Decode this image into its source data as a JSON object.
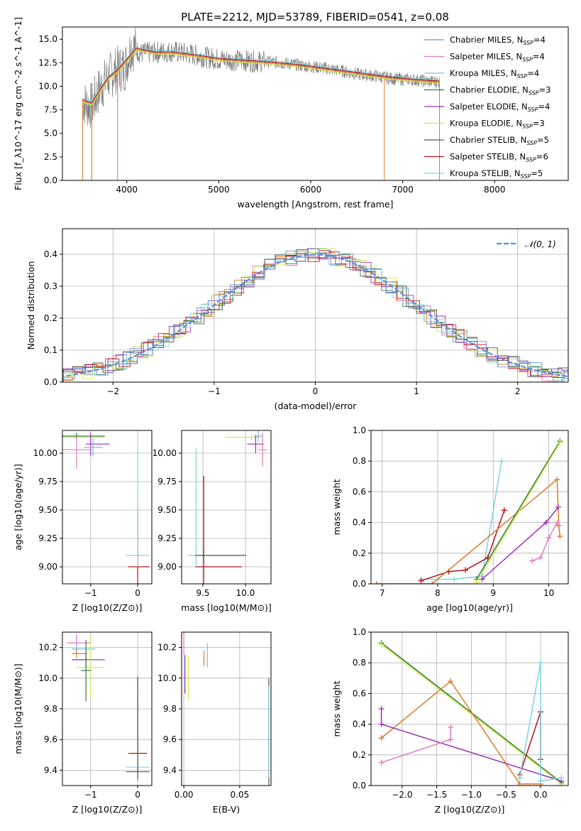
{
  "figure": {
    "title": "PLATE=2212, MJD=53789, FIBERID=0541, z=0.08"
  },
  "colors": {
    "Chabrier MILES": "#6b8fd6",
    "Salpeter MILES": "#e07cc0",
    "Kroupa MILES": "#7fb8e6",
    "Chabrier ELODIE": "#2f7f3f",
    "Salpeter ELODIE": "#9a2fb5",
    "Kroupa ELODIE": "#d6e84a",
    "Chabrier STELIB": "#555555",
    "Salpeter STELIB": "#b5121b",
    "Kroupa STELIB": "#7fd1e0",
    "orange_model": "#d97a2b",
    "green_model": "#a9d94a"
  },
  "chart_data": [
    {
      "id": "spectrum",
      "type": "line",
      "xlabel": "wavelength [Angstrom, rest frame]",
      "ylabel": "Flux [f_λ10^-17 erg cm^-2 s^-1 A^-1]",
      "xlim": [
        3300,
        8800
      ],
      "ylim": [
        0,
        16.3
      ],
      "xticks": [
        4000,
        5000,
        6000,
        7000,
        8000
      ],
      "yticks": [
        "0.0",
        "2.5",
        "5.0",
        "7.5",
        "10.0",
        "12.5",
        "15.0"
      ],
      "grid": false,
      "legend_position": "top-right",
      "legend": [
        {
          "name": "Chabrier MILES",
          "nssp": "4"
        },
        {
          "name": "Salpeter MILES",
          "nssp": "4"
        },
        {
          "name": "Kroupa MILES",
          "nssp": "4"
        },
        {
          "name": "Chabrier ELODIE",
          "nssp": "3"
        },
        {
          "name": "Salpeter ELODIE",
          "nssp": "4"
        },
        {
          "name": "Kroupa ELODIE",
          "nssp": "3"
        },
        {
          "name": "Chabrier STELIB",
          "nssp": "5"
        },
        {
          "name": "Salpeter STELIB",
          "nssp": "6"
        },
        {
          "name": "Kroupa STELIB",
          "nssp": "5"
        }
      ],
      "data_x": [
        3520,
        3560,
        3620,
        3700,
        3800,
        3900,
        3980,
        4050,
        4150,
        4300,
        4500,
        4700,
        4900,
        5100,
        5300,
        5500,
        5700,
        5900,
        6100,
        6300,
        6500,
        6700,
        6900,
        7100,
        7300,
        7400
      ],
      "data_y": [
        8.5,
        8.0,
        7.9,
        9.6,
        11.0,
        11.8,
        12.0,
        14.3,
        13.5,
        13.6,
        13.7,
        13.4,
        13.0,
        12.8,
        12.7,
        12.6,
        12.5,
        12.2,
        12.0,
        11.7,
        11.3,
        11.1,
        10.8,
        10.7,
        10.5,
        10.5
      ],
      "model_x": [
        3520,
        3620,
        3700,
        3800,
        3900,
        4000,
        4100,
        4300,
        4500,
        4800,
        5000,
        5300,
        5600,
        5900,
        6200,
        6500,
        6800,
        7100,
        7400
      ],
      "model_y": [
        8.5,
        8.2,
        9.5,
        10.9,
        11.7,
        12.8,
        14.0,
        13.6,
        13.6,
        13.2,
        12.9,
        12.7,
        12.5,
        12.2,
        11.8,
        11.4,
        11.0,
        10.7,
        10.5
      ]
    },
    {
      "id": "residuals",
      "type": "histogram",
      "xlabel": "(data-model)/error",
      "ylabel": "Normed distribution",
      "xlim": [
        -2.5,
        2.5
      ],
      "ylim": [
        0,
        0.48
      ],
      "xticks": [
        "−2",
        "−1",
        "0",
        "1",
        "2"
      ],
      "yticks": [
        "0.0",
        "0.1",
        "0.2",
        "0.3",
        "0.4"
      ],
      "grid": true,
      "legend_position": "top-right",
      "legend": [
        {
          "name": "𝒩(0, 1)"
        }
      ],
      "gaussian": {
        "mean": 0,
        "sigma": 1
      }
    },
    {
      "id": "age_vs_Z",
      "type": "errorbar",
      "xlabel": "Z [log10(Z/Z⊙)]",
      "ylabel": "age  [log10(age/yr)]",
      "xlim": [
        -1.6,
        0.3
      ],
      "ylim": [
        8.85,
        10.2
      ],
      "xticks": [
        "−1",
        "0"
      ],
      "yticks": [
        "9.00",
        "9.25",
        "9.50",
        "9.75",
        "10.00"
      ],
      "grid": true,
      "points": [
        {
          "series": "Kroupa ELODIE",
          "x": -1.3,
          "y": 10.14,
          "xerr": [
            0.3,
            0.6
          ],
          "yerr": [
            0.03,
            0.03
          ]
        },
        {
          "series": "Chabrier ELODIE",
          "x": -1.3,
          "y": 10.15,
          "xerr": [
            0.3,
            0.6
          ],
          "yerr": [
            0.03,
            0.03
          ]
        },
        {
          "series": "Salpeter MILES",
          "x": -1.3,
          "y": 10.03,
          "xerr": [
            0.3,
            0.3
          ],
          "yerr": [
            0.17,
            0.12
          ]
        },
        {
          "series": "Salpeter ELODIE",
          "x": -1.0,
          "y": 10.08,
          "xerr": [
            0.1,
            0.4
          ],
          "yerr": [
            0.1,
            0.1
          ]
        },
        {
          "series": "Kroupa MILES",
          "x": -0.95,
          "y": 10.05,
          "xerr": [
            0.2,
            0.2
          ],
          "yerr": [
            0.08,
            0.08
          ]
        },
        {
          "series": "Salpeter STELIB",
          "x": 0.0,
          "y": 9.0,
          "xerr": [
            0.2,
            0.25
          ],
          "yerr": [
            0.15,
            0.5
          ]
        },
        {
          "series": "Kroupa STELIB",
          "x": 0.0,
          "y": 9.1,
          "xerr": [
            0.25,
            0.25
          ],
          "yerr": [
            0.1,
            0.95
          ]
        }
      ]
    },
    {
      "id": "age_vs_mass",
      "type": "errorbar",
      "xlabel": "mass [log10(M/M⊙)]",
      "ylabel": "",
      "xlim": [
        9.25,
        10.3
      ],
      "ylim": [
        8.85,
        10.2
      ],
      "xticks": [
        "9.5",
        "10.0"
      ],
      "yticks": [
        "9.00",
        "9.25",
        "9.50",
        "9.75",
        "10.00"
      ],
      "grid": true,
      "points": [
        {
          "series": "Kroupa ELODIE",
          "x": 10.07,
          "y": 10.14,
          "xerr": [
            0.3,
            0.1
          ],
          "yerr": [
            0.03,
            0.03
          ]
        },
        {
          "series": "Salpeter ELODIE",
          "x": 10.12,
          "y": 10.08,
          "xerr": [
            0.1,
            0.1
          ],
          "yerr": [
            0.08,
            0.08
          ]
        },
        {
          "series": "Salpeter MILES",
          "x": 10.2,
          "y": 10.03,
          "xerr": [
            0.05,
            0.05
          ],
          "yerr": [
            0.15,
            0.15
          ]
        },
        {
          "series": "Kroupa MILES",
          "x": 10.15,
          "y": 10.15,
          "xerr": [
            0.05,
            0.05
          ],
          "yerr": [
            0.05,
            0.05
          ]
        },
        {
          "series": "Salpeter STELIB",
          "x": 9.51,
          "y": 9.0,
          "xerr": [
            0.1,
            0.45
          ],
          "yerr": [
            0.15,
            0.8
          ]
        },
        {
          "series": "Kroupa STELIB",
          "x": 9.42,
          "y": 9.1,
          "xerr": [
            0.1,
            0.55
          ],
          "yerr": [
            0.1,
            0.95
          ]
        },
        {
          "series": "Chabrier STELIB",
          "x": 9.51,
          "y": 9.1,
          "xerr": [
            0.1,
            0.5
          ],
          "yerr": [
            0.05,
            0.05
          ]
        }
      ]
    },
    {
      "id": "weight_vs_age",
      "type": "line",
      "xlabel": "age  [log10(age/yr)]",
      "ylabel": "mass weight",
      "xlim": [
        6.8,
        10.35
      ],
      "ylim": [
        0,
        1.0
      ],
      "xticks": [
        "7",
        "8",
        "9",
        "10"
      ],
      "yticks": [
        "0.0",
        "0.2",
        "0.4",
        "0.6",
        "0.8",
        "1.0"
      ],
      "grid": true,
      "series": [
        {
          "series": "Kroupa STELIB",
          "x": [
            7.7,
            8.3,
            8.8,
            9.15
          ],
          "y": [
            0.03,
            0.03,
            0.05,
            0.8
          ]
        },
        {
          "series": "Salpeter STELIB",
          "x": [
            7.7,
            8.2,
            8.5,
            8.9,
            9.2
          ],
          "y": [
            0.02,
            0.08,
            0.09,
            0.17,
            0.48
          ]
        },
        {
          "series": "orange_model",
          "x": [
            6.9,
            7.9,
            10.15,
            10.18,
            10.2
          ],
          "y": [
            0.0,
            0.0,
            0.68,
            0.38,
            0.31
          ]
        },
        {
          "series": "Chabrier ELODIE",
          "x": [
            8.7,
            10.2
          ],
          "y": [
            0.03,
            0.93
          ]
        },
        {
          "series": "Kroupa ELODIE",
          "x": [
            8.7,
            10.2
          ],
          "y": [
            0.01,
            0.92
          ]
        },
        {
          "series": "Salpeter ELODIE",
          "x": [
            8.8,
            9.95,
            10.17
          ],
          "y": [
            0.03,
            0.4,
            0.5
          ]
        },
        {
          "series": "Salpeter MILES",
          "x": [
            9.7,
            9.85,
            10.0,
            10.15
          ],
          "y": [
            0.15,
            0.17,
            0.3,
            0.4
          ]
        }
      ]
    },
    {
      "id": "mass_vs_Z",
      "type": "errorbar",
      "xlabel": "Z [log10(Z/Z⊙)]",
      "ylabel": "mass [log10(M/M⊙)]",
      "xlim": [
        -1.6,
        0.3
      ],
      "ylim": [
        9.3,
        10.3
      ],
      "xticks": [
        "−1",
        "0"
      ],
      "yticks": [
        "9.4",
        "9.6",
        "9.8",
        "10.0",
        "10.2"
      ],
      "grid": true,
      "points": [
        {
          "series": "Salpeter MILES",
          "x": -1.3,
          "y": 10.23,
          "xerr": [
            0.2,
            0.3
          ],
          "yerr": [
            0.06,
            0.06
          ]
        },
        {
          "series": "Kroupa MILES",
          "x": -1.3,
          "y": 10.19,
          "xerr": [
            0.1,
            0.4
          ],
          "yerr": [
            0.03,
            0.03
          ]
        },
        {
          "series": "orange_model",
          "x": -1.3,
          "y": 10.16,
          "xerr": [
            0.1,
            0.2
          ],
          "yerr": [
            0.03,
            0.03
          ]
        },
        {
          "series": "Salpeter ELODIE",
          "x": -1.1,
          "y": 10.12,
          "xerr": [
            0.3,
            0.4
          ],
          "yerr": [
            0.05,
            0.05
          ]
        },
        {
          "series": "Kroupa ELODIE",
          "x": -1.0,
          "y": 10.07,
          "xerr": [
            0.3,
            0.3
          ],
          "yerr": [
            0.2,
            0.2
          ]
        },
        {
          "series": "Chabrier ELODIE",
          "x": -1.1,
          "y": 10.05,
          "xerr": [
            0.1,
            0.1
          ],
          "yerr": [
            0.2,
            0.2
          ]
        },
        {
          "series": "Salpeter STELIB",
          "x": 0.0,
          "y": 9.51,
          "xerr": [
            0.2,
            0.2
          ],
          "yerr": [
            0.15,
            0.5
          ]
        },
        {
          "series": "Kroupa STELIB",
          "x": 0.0,
          "y": 9.42,
          "xerr": [
            0.25,
            0.25
          ],
          "yerr": [
            0.1,
            0.5
          ]
        },
        {
          "series": "Chabrier STELIB",
          "x": 0.0,
          "y": 9.39,
          "xerr": [
            0.25,
            0.25
          ],
          "yerr": [
            0.05,
            0.6
          ]
        }
      ]
    },
    {
      "id": "mass_vs_ebv",
      "type": "errorbar",
      "xlabel": "E(B-V)",
      "ylabel": "",
      "xlim": [
        -0.002,
        0.078
      ],
      "ylim": [
        9.3,
        10.3
      ],
      "xticks": [
        "0.00",
        "0.05"
      ],
      "yticks": [
        "9.4",
        "9.6",
        "9.8",
        "10.0",
        "10.2"
      ],
      "grid": true,
      "points": [
        {
          "series": "Salpeter MILES",
          "x": 0.0,
          "y": 10.23,
          "xerr": [
            0,
            0
          ],
          "yerr": [
            0.08,
            0.08
          ]
        },
        {
          "series": "Salpeter ELODIE",
          "x": 0.001,
          "y": 10.05,
          "xerr": [
            0,
            0
          ],
          "yerr": [
            0.15,
            0.1
          ]
        },
        {
          "series": "Kroupa ELODIE",
          "x": 0.004,
          "y": 10.0,
          "xerr": [
            0,
            0
          ],
          "yerr": [
            0.15,
            0.15
          ]
        },
        {
          "series": "orange_model",
          "x": 0.018,
          "y": 10.13,
          "xerr": [
            0,
            0
          ],
          "yerr": [
            0.05,
            0.05
          ]
        },
        {
          "series": "Kroupa MILES",
          "x": 0.021,
          "y": 10.15,
          "xerr": [
            0,
            0
          ],
          "yerr": [
            0.08,
            0.08
          ]
        },
        {
          "series": "Chabrier STELIB",
          "x": 0.076,
          "y": 9.65,
          "xerr": [
            0,
            0
          ],
          "yerr": [
            0.35,
            0.35
          ]
        },
        {
          "series": "Kroupa STELIB",
          "x": 0.076,
          "y": 9.65,
          "xerr": [
            0,
            0
          ],
          "yerr": [
            0.3,
            0.3
          ]
        }
      ]
    },
    {
      "id": "weight_vs_Z",
      "type": "line",
      "xlabel": "Z [log10(Z/Z⊙)]",
      "ylabel": "mass weight",
      "xlim": [
        -2.45,
        0.4
      ],
      "ylim": [
        0,
        1.0
      ],
      "xticks": [
        "−2.0",
        "−1.5",
        "−1.0",
        "−0.5",
        "0.0"
      ],
      "yticks": [
        "0.0",
        "0.2",
        "0.4",
        "0.6",
        "0.8",
        "1.0"
      ],
      "grid": true,
      "series": [
        {
          "series": "Chabrier ELODIE",
          "x": [
            -2.3,
            0.3
          ],
          "y": [
            0.93,
            0.02
          ]
        },
        {
          "series": "Kroupa ELODIE",
          "x": [
            -2.3,
            0.3
          ],
          "y": [
            0.92,
            0.01
          ]
        },
        {
          "series": "orange_model",
          "x": [
            -2.3,
            -1.3,
            -0.3,
            0.0
          ],
          "y": [
            0.31,
            0.68,
            0.01,
            0.01
          ]
        },
        {
          "series": "Salpeter ELODIE",
          "x": [
            -2.3,
            -2.3,
            0.3
          ],
          "y": [
            0.5,
            0.4,
            0.03
          ]
        },
        {
          "series": "Salpeter MILES",
          "x": [
            -2.3,
            -1.3,
            -1.3
          ],
          "y": [
            0.15,
            0.3,
            0.38
          ]
        },
        {
          "series": "Salpeter STELIB",
          "x": [
            -0.3,
            0.0,
            0.0
          ],
          "y": [
            0.07,
            0.48,
            0.17
          ]
        },
        {
          "series": "Kroupa STELIB",
          "x": [
            -0.3,
            0.0,
            0.0,
            0.3
          ],
          "y": [
            0.05,
            0.8,
            0.03,
            0.05
          ]
        }
      ]
    }
  ]
}
